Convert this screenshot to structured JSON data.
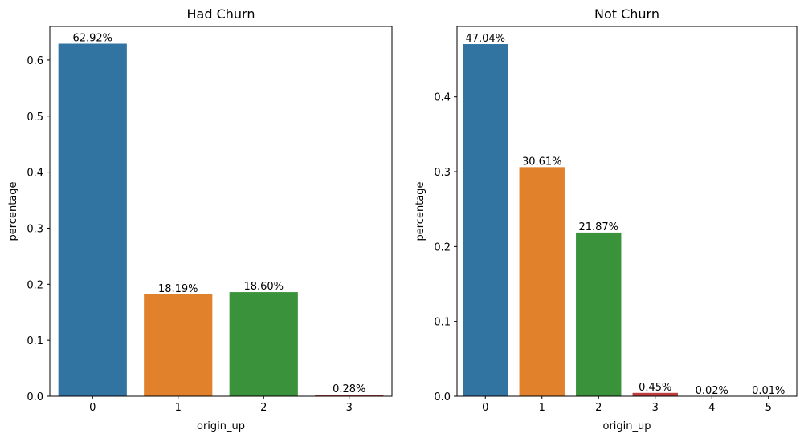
{
  "chart_data": [
    {
      "type": "bar",
      "title": "Had Churn",
      "xlabel": "origin_up",
      "ylabel": "percentage",
      "categories": [
        "0",
        "1",
        "2",
        "3"
      ],
      "values": [
        0.6292,
        0.1819,
        0.186,
        0.0028
      ],
      "data_labels": [
        "62.92%",
        "18.19%",
        "18.60%",
        "0.28%"
      ],
      "colors": [
        "#3274a1",
        "#e1812c",
        "#3a923a",
        "#c03d3e"
      ],
      "ylim": [
        0,
        0.66
      ],
      "yticks": [
        0.0,
        0.1,
        0.2,
        0.3,
        0.4,
        0.5,
        0.6
      ],
      "ytick_labels": [
        "0.0",
        "0.1",
        "0.2",
        "0.3",
        "0.4",
        "0.5",
        "0.6"
      ],
      "grid": false,
      "legend": "none"
    },
    {
      "type": "bar",
      "title": "Not Churn",
      "xlabel": "origin_up",
      "ylabel": "percentage",
      "categories": [
        "0",
        "1",
        "2",
        "3",
        "4",
        "5"
      ],
      "values": [
        0.4704,
        0.3061,
        0.2187,
        0.0045,
        0.0002,
        0.0001
      ],
      "data_labels": [
        "47.04%",
        "30.61%",
        "21.87%",
        "0.45%",
        "0.02%",
        "0.01%"
      ],
      "colors": [
        "#3274a1",
        "#e1812c",
        "#3a923a",
        "#c03d3e",
        "#9372b2",
        "#845b53"
      ],
      "ylim": [
        0,
        0.494
      ],
      "yticks": [
        0.0,
        0.1,
        0.2,
        0.3,
        0.4
      ],
      "ytick_labels": [
        "0.0",
        "0.1",
        "0.2",
        "0.3",
        "0.4"
      ],
      "grid": false,
      "legend": "none"
    }
  ]
}
